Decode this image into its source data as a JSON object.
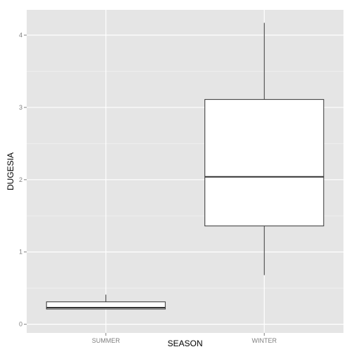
{
  "chart_data": {
    "type": "boxplot",
    "xlabel": "SEASON",
    "ylabel": "DUGESIA",
    "categories": [
      "SUMMER",
      "WINTER"
    ],
    "ylim": [
      -0.12,
      4.35
    ],
    "yticks": [
      0,
      1,
      2,
      3,
      4
    ],
    "grid": true,
    "legend": "none",
    "boxes": [
      {
        "category": "SUMMER",
        "whisker_low": 0.21,
        "q1": 0.21,
        "median": 0.23,
        "q3": 0.31,
        "whisker_high": 0.41
      },
      {
        "category": "WINTER",
        "whisker_low": 0.68,
        "q1": 1.36,
        "median": 2.04,
        "q3": 3.11,
        "whisker_high": 4.17
      }
    ],
    "colors": {
      "panel": "#e5e5e5",
      "grid_major": "#ffffff",
      "grid_minor": "#f2f2f2",
      "box_fill": "#ffffff",
      "box_stroke": "#333333",
      "tick_text": "#7f7f7f",
      "axis_text": "#000000"
    }
  }
}
